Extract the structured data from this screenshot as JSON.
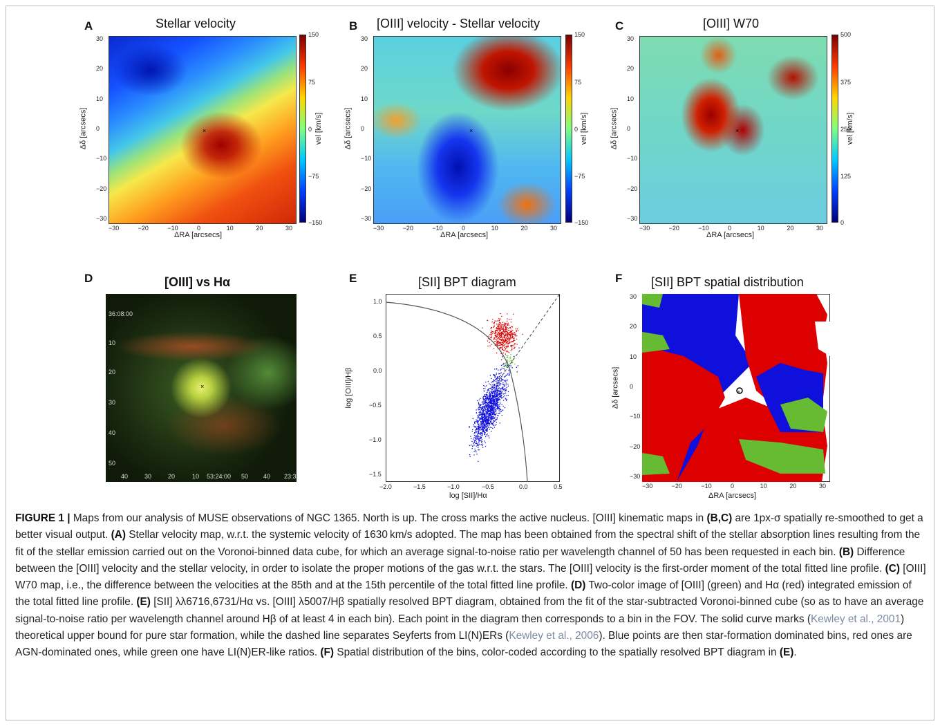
{
  "panels": {
    "A": {
      "letter": "A",
      "title": "Stellar velocity",
      "xlabel": "ΔRA [arcsecs]",
      "ylabel": "Δδ [arcsecs]",
      "cbar_label": "vel [km/s]",
      "cbar_ticks": [
        "150",
        "75",
        "0",
        "−75",
        "−150"
      ]
    },
    "B": {
      "letter": "B",
      "title": "[OIII] velocity - Stellar velocity",
      "xlabel": "ΔRA [arcsecs]",
      "ylabel": "Δδ [arcsecs]",
      "cbar_label": "vel [km/s]",
      "cbar_ticks": [
        "150",
        "75",
        "0",
        "−75",
        "−150"
      ]
    },
    "C": {
      "letter": "C",
      "title": "[OIII] W70",
      "xlabel": "ΔRA [arcsecs]",
      "ylabel": "Δδ [arcsecs]",
      "cbar_label": "vel [km/s]",
      "cbar_ticks": [
        "500",
        "375",
        "250",
        "125",
        "0"
      ]
    },
    "D": {
      "letter": "D",
      "title": "[OIII] vs Hα",
      "ylabels": [
        "36:08:00",
        "10",
        "20",
        "30",
        "40",
        "50"
      ],
      "xlabels": [
        "40",
        "30",
        "20",
        "10",
        "53:24:00",
        "50",
        "40",
        "23:3"
      ]
    },
    "E": {
      "letter": "E",
      "title": "[SII] BPT diagram",
      "xlabel": "log [SII]/Hα",
      "ylabel": "log [OIII]/Hβ",
      "xticks": [
        "−2.0",
        "−1.5",
        "−1.0",
        "−0.5",
        "0.0",
        "0.5"
      ],
      "yticks": [
        "1.0",
        "0.5",
        "0.0",
        "−0.5",
        "−1.0",
        "−1.5"
      ]
    },
    "F": {
      "letter": "F",
      "title": "[SII] BPT spatial distribution",
      "xlabel": "ΔRA [arcsecs]",
      "ylabel": "Δδ [arcsecs]"
    }
  },
  "map_ticks": {
    "x": [
      "−30",
      "−20",
      "−10",
      "0",
      "10",
      "20",
      "30"
    ],
    "y": [
      "30",
      "20",
      "10",
      "0",
      "−10",
      "−20",
      "−30"
    ]
  },
  "colors": {
    "sf_blue": "#1010dd",
    "agn_red": "#dd0000",
    "liner_green": "#66bb33",
    "cite": "#7c8ba0"
  },
  "caption": {
    "fig_label": "FIGURE 1 |",
    "t1": " Maps from our analysis of MUSE observations of NGC 1365. North is up. The cross marks the active nucleus. [OIII] kinematic maps in ",
    "b1": "(B,C)",
    "t2": " are 1px-σ spatially re-smoothed to get a better visual output. ",
    "b2": "(A)",
    "t3": " Stellar velocity map, w.r.t. the systemic velocity of 1630 km/s adopted. The map has been obtained from the spectral shift of the stellar absorption lines resulting from the fit of the stellar emission carried out on the Voronoi-binned data cube, for which an average signal-to-noise ratio per wavelength channel of 50 has been requested in each bin. ",
    "b3": "(B)",
    "t4": " Difference between the [OIII] velocity and the stellar velocity, in order to isolate the proper motions of the gas w.r.t. the stars. The [OIII] velocity is the first-order moment of the total fitted line profile. ",
    "b4": "(C)",
    "t5": " [OIII] W70 map, i.e., the difference between the velocities at the 85th and at the 15th percentile of the total fitted line profile. ",
    "b5": "(D)",
    "t6": " Two-color image of [OIII] (green) and Hα (red)  integrated emission of the total fitted line profile. ",
    "b6": "(E)",
    "t7": " [SII] λλ6716,6731/Hα vs. [OIII] λ5007/Hβ spatially resolved BPT diagram, obtained from the fit of the star-subtracted Voronoi-binned cube (so as to have an average signal-to-noise ratio per wavelength channel around Hβ of at least 4 in each bin). Each point in the diagram then corresponds to a bin in the FOV. The solid curve marks (",
    "c1": "Kewley et al., 2001",
    "t8": ") theoretical upper bound for pure star formation, while the dashed line separates Seyferts from LI(N)ERs (",
    "c2": "Kewley et al., 2006",
    "t9": "). Blue points are then star-formation dominated bins, red ones are AGN-dominated ones, while green one have LI(N)ER-like ratios. ",
    "b7": "(F)",
    "t10": " Spatial distribution of the bins, color-coded according to the spatially resolved BPT diagram in ",
    "b8": "(E)",
    "t11": "."
  }
}
